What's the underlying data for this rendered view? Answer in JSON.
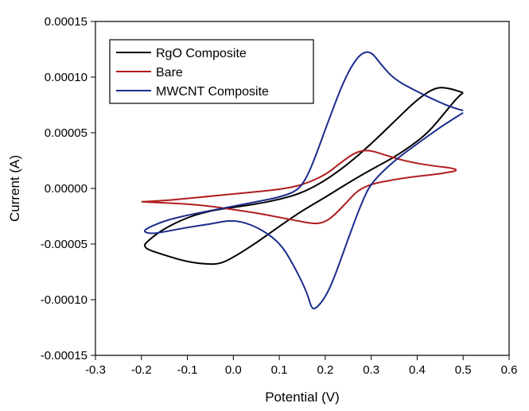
{
  "chart_data": {
    "type": "line",
    "title": "",
    "xlabel": "Potential (V)",
    "ylabel": "Current (A)",
    "xlim": [
      -0.3,
      0.6
    ],
    "ylim": [
      -0.00015,
      0.00015
    ],
    "xticks": [
      -0.3,
      -0.2,
      -0.1,
      0.0,
      0.1,
      0.2,
      0.3,
      0.4,
      0.5,
      0.6
    ],
    "xtick_labels": [
      "-0.3",
      "-0.2",
      "-0.1",
      "0.0",
      "0.1",
      "0.2",
      "0.3",
      "0.4",
      "0.5",
      "0.6"
    ],
    "yticks": [
      0.00015,
      0.0001,
      5e-05,
      0.0,
      -5e-05,
      -0.0001,
      -0.00015
    ],
    "ytick_labels": [
      "0.00015",
      "0.00010",
      "0.00005",
      "0.00000",
      "-0.00005",
      "-0.00010",
      "-0.00015"
    ],
    "grid": false,
    "legend_position": "top-left",
    "series": [
      {
        "name": "RgO Composite",
        "color": "#000000",
        "points": [
          [
            0.5,
            8.6e-05
          ],
          [
            0.49,
            8.3e-05
          ],
          [
            0.46,
            6.8e-05
          ],
          [
            0.43,
            5.3e-05
          ],
          [
            0.4,
            4.2e-05
          ],
          [
            0.35,
            2.8e-05
          ],
          [
            0.3,
            1.7e-05
          ],
          [
            0.25,
            5e-06
          ],
          [
            0.2,
            -8e-06
          ],
          [
            0.15,
            -2e-05
          ],
          [
            0.1,
            -3.4e-05
          ],
          [
            0.05,
            -4.9e-05
          ],
          [
            0.0,
            -6.2e-05
          ],
          [
            -0.03,
            -6.8e-05
          ],
          [
            -0.06,
            -6.8e-05
          ],
          [
            -0.1,
            -6.6e-05
          ],
          [
            -0.15,
            -6e-05
          ],
          [
            -0.2,
            -5.3e-05
          ],
          [
            -0.18,
            -4.5e-05
          ],
          [
            -0.15,
            -3.6e-05
          ],
          [
            -0.1,
            -2.6e-05
          ],
          [
            -0.05,
            -2e-05
          ],
          [
            0.0,
            -1.7e-05
          ],
          [
            0.05,
            -1.4e-05
          ],
          [
            0.1,
            -1e-05
          ],
          [
            0.15,
            -4e-06
          ],
          [
            0.2,
            7e-06
          ],
          [
            0.25,
            2.2e-05
          ],
          [
            0.3,
            4e-05
          ],
          [
            0.35,
            6e-05
          ],
          [
            0.4,
            8e-05
          ],
          [
            0.44,
            9.1e-05
          ],
          [
            0.47,
            9e-05
          ],
          [
            0.5,
            8.6e-05
          ]
        ]
      },
      {
        "name": "Bare",
        "color": "#b01c1c",
        "points": [
          [
            -0.2,
            -1.2e-05
          ],
          [
            -0.15,
            -1.1e-05
          ],
          [
            -0.1,
            -9e-06
          ],
          [
            -0.05,
            -7e-06
          ],
          [
            0.0,
            -5e-06
          ],
          [
            0.05,
            -3e-06
          ],
          [
            0.1,
            -1e-06
          ],
          [
            0.15,
            3e-06
          ],
          [
            0.2,
            1.2e-05
          ],
          [
            0.23,
            2.2e-05
          ],
          [
            0.26,
            3.1e-05
          ],
          [
            0.28,
            3.4e-05
          ],
          [
            0.3,
            3.4e-05
          ],
          [
            0.33,
            3e-05
          ],
          [
            0.37,
            2.5e-05
          ],
          [
            0.42,
            2.1e-05
          ],
          [
            0.5,
            1.7e-05
          ],
          [
            0.45,
            1.3e-05
          ],
          [
            0.4,
            1.1e-05
          ],
          [
            0.35,
            8e-06
          ],
          [
            0.3,
            4e-06
          ],
          [
            0.27,
            -2e-06
          ],
          [
            0.25,
            -1.1e-05
          ],
          [
            0.22,
            -2.4e-05
          ],
          [
            0.2,
            -3e-05
          ],
          [
            0.18,
            -3.2e-05
          ],
          [
            0.15,
            -3e-05
          ],
          [
            0.1,
            -2.6e-05
          ],
          [
            0.05,
            -2.2e-05
          ],
          [
            0.0,
            -1.9e-05
          ],
          [
            -0.05,
            -1.6e-05
          ],
          [
            -0.1,
            -1.4e-05
          ],
          [
            -0.15,
            -1.3e-05
          ],
          [
            -0.2,
            -1.2e-05
          ]
        ]
      },
      {
        "name": "MWCNT Composite",
        "color": "#1c2c8c",
        "points": [
          [
            0.5,
            7e-05
          ],
          [
            0.48,
            7.2e-05
          ],
          [
            0.44,
            7.9e-05
          ],
          [
            0.4,
            8.7e-05
          ],
          [
            0.35,
            9.8e-05
          ],
          [
            0.32,
            0.000112
          ],
          [
            0.3,
            0.000123
          ],
          [
            0.28,
            0.000122
          ],
          [
            0.26,
            0.000112
          ],
          [
            0.24,
            9.6e-05
          ],
          [
            0.22,
            7.5e-05
          ],
          [
            0.2,
            5.3e-05
          ],
          [
            0.18,
            3e-05
          ],
          [
            0.16,
            1e-05
          ],
          [
            0.14,
            -2e-06
          ],
          [
            0.1,
            -8e-06
          ],
          [
            0.05,
            -1.2e-05
          ],
          [
            0.0,
            -1.6e-05
          ],
          [
            -0.05,
            -2e-05
          ],
          [
            -0.1,
            -2.4e-05
          ],
          [
            -0.15,
            -2.9e-05
          ],
          [
            -0.2,
            -3.8e-05
          ],
          [
            -0.18,
            -4.1e-05
          ],
          [
            -0.15,
            -3.9e-05
          ],
          [
            -0.1,
            -3.5e-05
          ],
          [
            -0.05,
            -3.2e-05
          ],
          [
            0.0,
            -2.8e-05
          ],
          [
            0.05,
            -3.4e-05
          ],
          [
            0.1,
            -4.8e-05
          ],
          [
            0.13,
            -6.8e-05
          ],
          [
            0.16,
            -9.3e-05
          ],
          [
            0.17,
            -0.000108
          ],
          [
            0.18,
            -0.000108
          ],
          [
            0.2,
            -9.8e-05
          ],
          [
            0.22,
            -8e-05
          ],
          [
            0.25,
            -4.5e-05
          ],
          [
            0.28,
            -1.2e-05
          ],
          [
            0.3,
            5e-06
          ],
          [
            0.35,
            2.5e-05
          ],
          [
            0.4,
            4e-05
          ],
          [
            0.45,
            5.5e-05
          ],
          [
            0.5,
            6.8e-05
          ]
        ]
      }
    ]
  }
}
